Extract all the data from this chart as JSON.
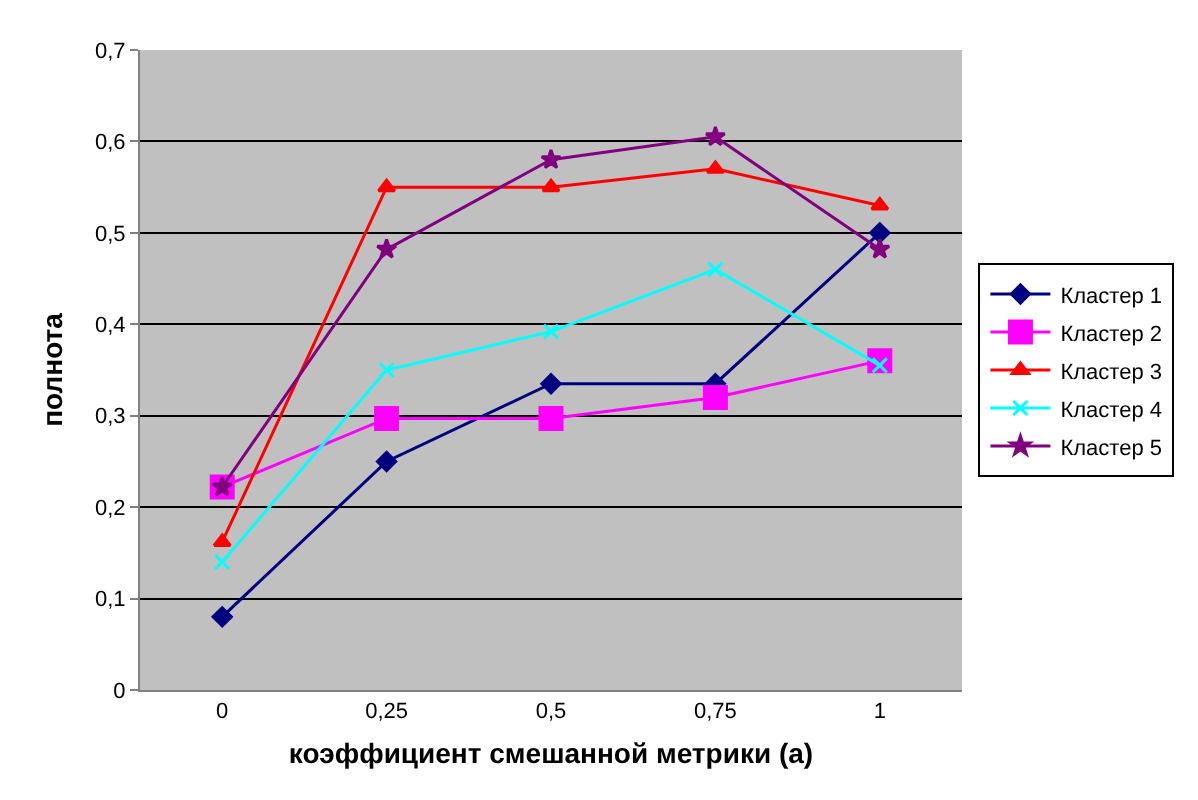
{
  "chart_data": {
    "type": "line",
    "xlabel": "коэффициент смешанной метрики (a)",
    "ylabel": "полнота",
    "categories": [
      "0",
      "0,25",
      "0,5",
      "0,75",
      "1"
    ],
    "series": [
      {
        "name": "Кластер 1",
        "color": "#000080",
        "marker": "diamond",
        "values": [
          0.08,
          0.25,
          0.335,
          0.335,
          0.5
        ]
      },
      {
        "name": "Кластер 2",
        "color": "#ff00ff",
        "marker": "square",
        "values": [
          0.222,
          0.297,
          0.297,
          0.32,
          0.36
        ]
      },
      {
        "name": "Кластер 3",
        "color": "#ff0000",
        "marker": "triangle",
        "values": [
          0.162,
          0.55,
          0.55,
          0.57,
          0.53
        ]
      },
      {
        "name": "Кластер 4",
        "color": "#00ffff",
        "marker": "cross",
        "values": [
          0.14,
          0.35,
          0.392,
          0.46,
          0.355
        ]
      },
      {
        "name": "Кластер 5",
        "color": "#800080",
        "marker": "star",
        "values": [
          0.222,
          0.482,
          0.58,
          0.605,
          0.482
        ]
      }
    ],
    "ylim": [
      0,
      0.7
    ],
    "yticks": [
      {
        "value": 0,
        "label": "0"
      },
      {
        "value": 0.1,
        "label": "0,1"
      },
      {
        "value": 0.2,
        "label": "0,2"
      },
      {
        "value": 0.3,
        "label": "0,3"
      },
      {
        "value": 0.4,
        "label": "0,4"
      },
      {
        "value": 0.5,
        "label": "0,5"
      },
      {
        "value": 0.6,
        "label": "0,6"
      },
      {
        "value": 0.7,
        "label": "0,7"
      }
    ],
    "grid": "y",
    "legend": "right",
    "line_style": "solid"
  }
}
